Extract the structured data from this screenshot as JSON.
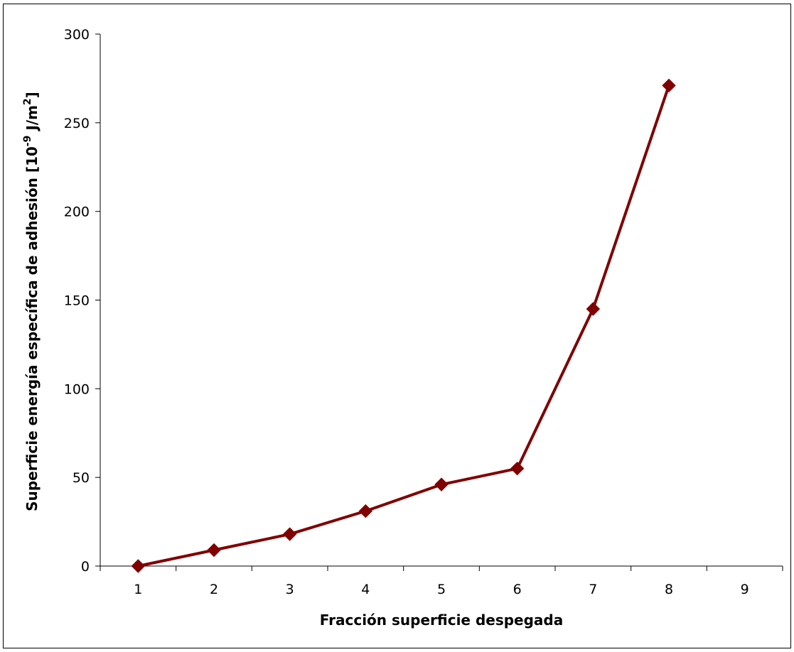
{
  "chart_data": {
    "type": "line",
    "title": "",
    "xlabel": "Fracción superficie despegada",
    "ylabel": {
      "prefix": "Superficie energía específica de adhesión [10",
      "exp": "-9",
      "mid": " J/m",
      "exp2": "2",
      "suffix": "]"
    },
    "x_categories": [
      "1",
      "2",
      "3",
      "4",
      "5",
      "6",
      "7",
      "8",
      "9"
    ],
    "y_ticks": [
      0,
      50,
      100,
      150,
      200,
      250,
      300
    ],
    "ylim": [
      0,
      300
    ],
    "grid": false,
    "legend": "none",
    "series": [
      {
        "x": [
          1,
          2,
          3,
          4,
          5,
          6,
          7,
          8
        ],
        "values": [
          0,
          9,
          18,
          31,
          46,
          55,
          145,
          271
        ],
        "color": "#800000",
        "marker": "diamond"
      }
    ]
  }
}
